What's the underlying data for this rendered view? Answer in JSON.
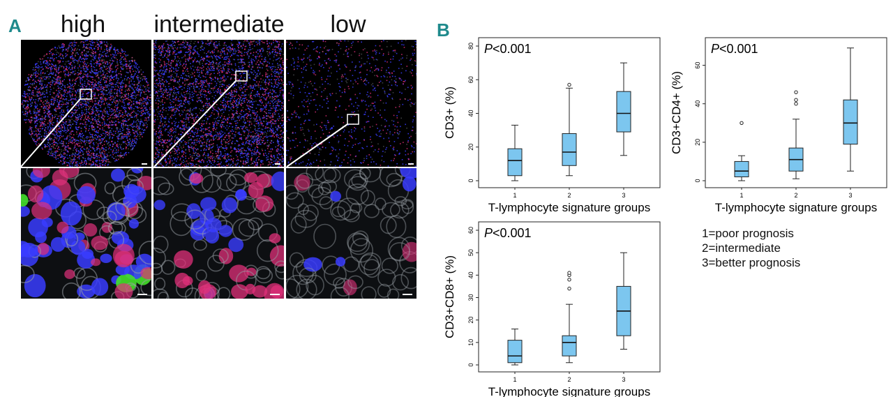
{
  "panel_a": {
    "letter": "A",
    "columns": [
      "high",
      "intermediate",
      "low"
    ]
  },
  "panel_b": {
    "letter": "B",
    "legend": [
      "1=poor prognosis",
      "2=intermediate",
      "3=better prognosis"
    ]
  },
  "colors": {
    "box_fill": "#7cc6ef",
    "panel_letter": "#1f8a8c",
    "dot_blue": "#3a3cff",
    "dot_magenta": "#e0307a",
    "dot_gray": "#9aa0a6",
    "dot_green": "#44e02a"
  },
  "chart_data": [
    {
      "type": "box",
      "annotation_italic": "P",
      "annotation_rest": "<0.001",
      "ylabel": "CD3+ (%)",
      "xlabel": "T-lymphocyte signature groups",
      "categories": [
        "1",
        "2",
        "3"
      ],
      "ylim": [
        0,
        80
      ],
      "yticks": [
        0,
        20,
        40,
        60,
        80
      ],
      "boxes": [
        {
          "min": 0,
          "q1": 3,
          "median": 12,
          "q3": 19,
          "max": 33,
          "outliers": []
        },
        {
          "min": 3,
          "q1": 9,
          "median": 17,
          "q3": 28,
          "max": 55,
          "outliers": [
            57
          ]
        },
        {
          "min": 15,
          "q1": 29,
          "median": 40,
          "q3": 53,
          "max": 70,
          "outliers": []
        }
      ]
    },
    {
      "type": "box",
      "annotation_italic": "P",
      "annotation_rest": "<0.001",
      "ylabel": "CD3+CD4+ (%)",
      "xlabel": "T-lymphocyte signature groups",
      "categories": [
        "1",
        "2",
        "3"
      ],
      "ylim": [
        0,
        70
      ],
      "yticks": [
        0,
        20,
        40,
        60
      ],
      "boxes": [
        {
          "min": 0,
          "q1": 2,
          "median": 5,
          "q3": 10,
          "max": 13,
          "outliers": [
            30
          ]
        },
        {
          "min": 1,
          "q1": 5,
          "median": 11,
          "q3": 17,
          "max": 32,
          "outliers": [
            40,
            42,
            46
          ]
        },
        {
          "min": 5,
          "q1": 19,
          "median": 30,
          "q3": 42,
          "max": 69,
          "outliers": []
        }
      ]
    },
    {
      "type": "box",
      "annotation_italic": "P",
      "annotation_rest": "<0.001",
      "ylabel": "CD3+CD8+ (%)",
      "xlabel": "T-lymphocyte signature groups",
      "categories": [
        "1",
        "2",
        "3"
      ],
      "ylim": [
        0,
        60
      ],
      "yticks": [
        0,
        10,
        20,
        30,
        40,
        50,
        60
      ],
      "boxes": [
        {
          "min": 0,
          "q1": 1,
          "median": 4,
          "q3": 11,
          "max": 16,
          "outliers": []
        },
        {
          "min": 1,
          "q1": 4,
          "median": 10,
          "q3": 13,
          "max": 27,
          "outliers": [
            34,
            38,
            40,
            41
          ]
        },
        {
          "min": 7,
          "q1": 13,
          "median": 24,
          "q3": 35,
          "max": 50,
          "outliers": []
        }
      ]
    }
  ]
}
